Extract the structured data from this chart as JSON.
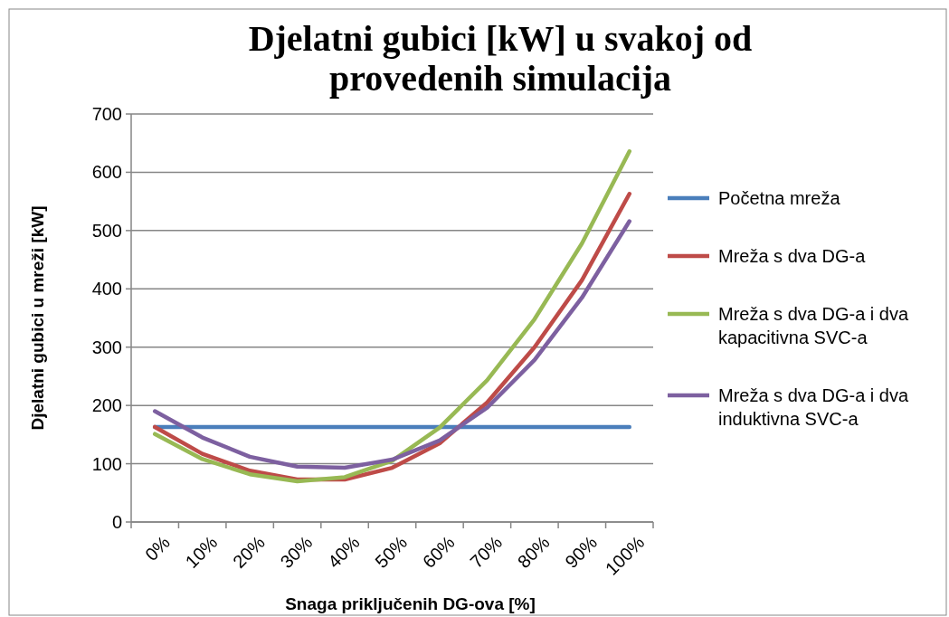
{
  "chart_data": {
    "type": "line",
    "title": "Djelatni gubici [kW] u svakoj od provedenih simulacija",
    "xlabel": "Snaga priključenih DG-ova [%]",
    "ylabel": "Djelatni gubici u mreži [kW]",
    "categories": [
      "0%",
      "10%",
      "20%",
      "30%",
      "40%",
      "50%",
      "60%",
      "70%",
      "80%",
      "90%",
      "100%"
    ],
    "ylim": [
      0,
      700
    ],
    "yticks": [
      0,
      100,
      200,
      300,
      400,
      500,
      600,
      700
    ],
    "grid": "y",
    "legend": "right",
    "marker": "none",
    "line_style": "solid",
    "series": [
      {
        "name": "Početna mreža",
        "color": "#4a7ebb",
        "values": [
          163,
          163,
          163,
          163,
          163,
          163,
          163,
          163,
          163,
          163,
          163
        ]
      },
      {
        "name": "Mreža s dva DG-a",
        "color": "#be4b48",
        "values": [
          163,
          117,
          88,
          73,
          73,
          93,
          135,
          205,
          300,
          415,
          563
        ]
      },
      {
        "name": "Mreža s dva DG-a i dva kapacitivna SVC-a",
        "color": "#98b954",
        "values": [
          151,
          108,
          82,
          70,
          77,
          105,
          162,
          243,
          348,
          478,
          636
        ]
      },
      {
        "name": "Mreža s dva DG-a i dva induktivna SVC-a",
        "color": "#7d60a0",
        "values": [
          190,
          145,
          112,
          95,
          93,
          107,
          140,
          196,
          278,
          385,
          516
        ]
      }
    ]
  }
}
